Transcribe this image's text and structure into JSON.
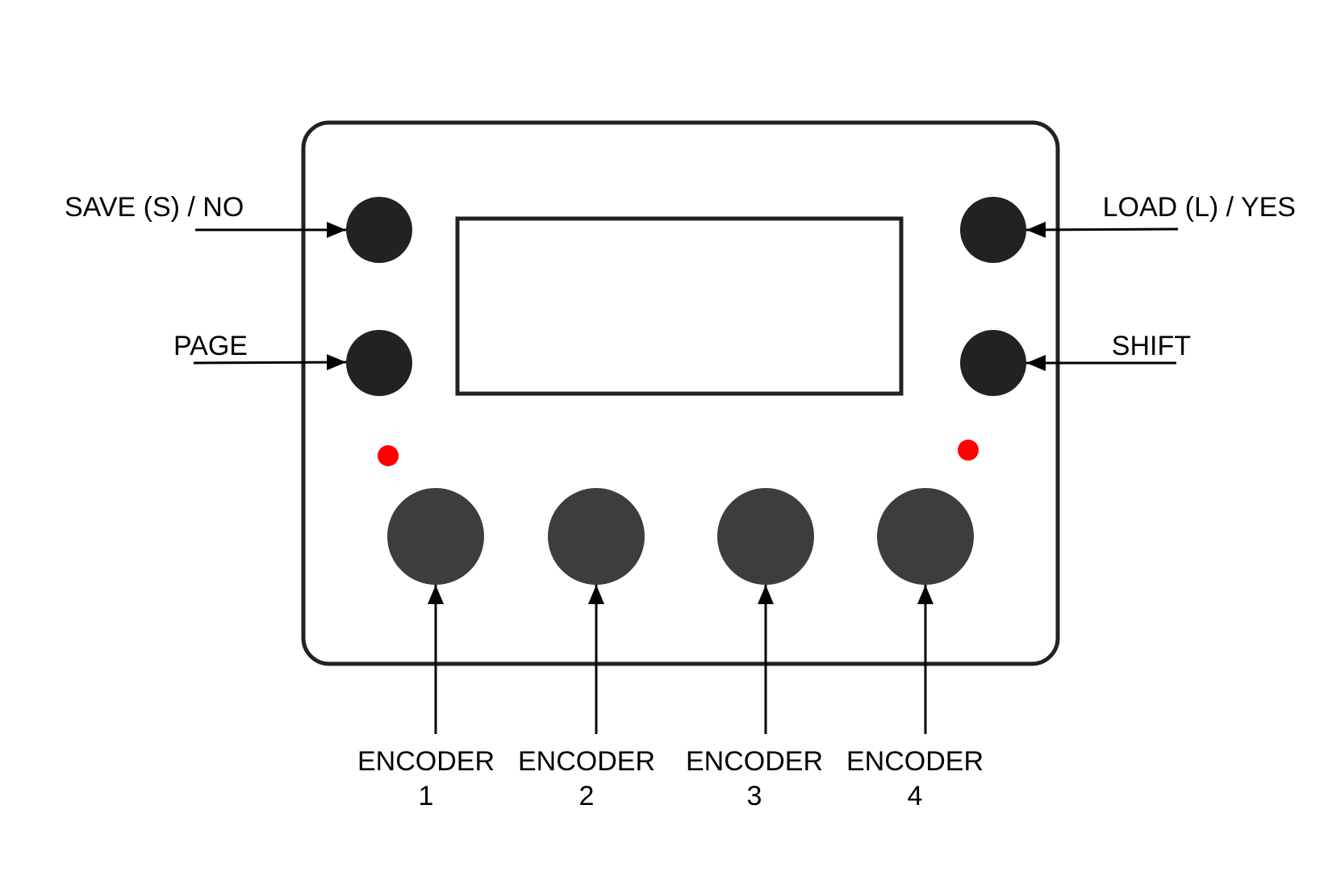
{
  "buttons": {
    "save": {
      "label": "SAVE (S) / NO"
    },
    "page": {
      "label": "PAGE"
    },
    "load": {
      "label": "LOAD (L) / YES"
    },
    "shift": {
      "label": "SHIFT"
    }
  },
  "encoders": [
    {
      "label": "ENCODER",
      "number": "1"
    },
    {
      "label": "ENCODER",
      "number": "2"
    },
    {
      "label": "ENCODER",
      "number": "3"
    },
    {
      "label": "ENCODER",
      "number": "4"
    }
  ],
  "colors": {
    "outline": "#222222",
    "button": "#222222",
    "encoder": "#3d3d3d",
    "led": "#ff0000",
    "arrow": "#000000"
  },
  "icons": {
    "led": "led-indicator-icon",
    "arrow": "arrow-icon"
  }
}
